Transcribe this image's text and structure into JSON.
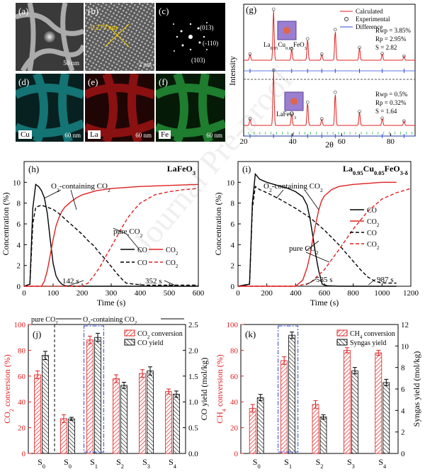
{
  "panels": {
    "a": {
      "label": "(a)",
      "scale": "50 nm"
    },
    "b": {
      "label": "(b)",
      "scale": "2 nm",
      "lattice": "0.279 nm"
    },
    "c": {
      "label": "(c)",
      "spots": [
        "(013)",
        "(-110)",
        "(103)"
      ]
    },
    "d": {
      "label": "(d)",
      "element": "Cu",
      "scale": "60 nm",
      "color": "#1fb7b7"
    },
    "e": {
      "label": "(e)",
      "element": "La",
      "scale": "60 nm",
      "color": "#d11a1a"
    },
    "f": {
      "label": "(f)",
      "element": "Fe",
      "scale": "60 nm",
      "color": "#2fc04a"
    }
  },
  "watermark": "Journal Pre-proof",
  "chart_data": [
    {
      "id": "g",
      "type": "line",
      "label": "(g)",
      "xlabel": "2θ",
      "ylabel": "Intensity",
      "xlim": [
        20,
        90
      ],
      "xticks": [
        20,
        40,
        60,
        80
      ],
      "legend": [
        "Calculated",
        "Experimental",
        "Difference"
      ],
      "subplots": [
        {
          "phase": "La0.95Cu0.05FeO3",
          "stats": [
            "Rwp = 3.85%",
            "Rp = 2.95%",
            "S = 2.82"
          ],
          "peaks": [
            [
              22.6,
              0.12
            ],
            [
              32.2,
              1.0
            ],
            [
              39.6,
              0.22
            ],
            [
              46.1,
              0.42
            ],
            [
              51.9,
              0.12
            ],
            [
              57.4,
              0.6
            ],
            [
              67.3,
              0.25
            ],
            [
              76.6,
              0.13
            ],
            [
              85.5,
              0.08
            ]
          ]
        },
        {
          "phase": "LaFeO3",
          "stats": [
            "Rwp = 0.5%",
            "Rp = 0.32%",
            "S = 1.64"
          ],
          "peaks": [
            [
              22.6,
              0.12
            ],
            [
              32.2,
              1.0
            ],
            [
              39.6,
              0.22
            ],
            [
              46.1,
              0.42
            ],
            [
              51.9,
              0.12
            ],
            [
              57.4,
              0.6
            ],
            [
              67.3,
              0.25
            ],
            [
              76.6,
              0.13
            ],
            [
              85.5,
              0.08
            ]
          ]
        }
      ]
    },
    {
      "id": "h",
      "type": "line",
      "label": "(h)",
      "title": "LaFeO3",
      "xlabel": "Time (s)",
      "ylabel": "Concentration (%)",
      "xlim": [
        0,
        600
      ],
      "ylim": [
        0,
        12
      ],
      "xticks": [
        0,
        100,
        200,
        300,
        400,
        500,
        600
      ],
      "yticks": [
        0,
        2,
        4,
        6,
        8,
        10
      ],
      "legend": [
        "CO",
        "CO2",
        "CO",
        "CO2"
      ],
      "annotations": [
        "O2-containing CO2",
        "pure CO2",
        "142 s",
        "352 s"
      ],
      "series": [
        {
          "gas": "CO",
          "mode": "O2",
          "style": "solid",
          "color": "#000000",
          "x": [
            0,
            20,
            30,
            40,
            50,
            60,
            70,
            80,
            90,
            100,
            110,
            120,
            130,
            142,
            160,
            200,
            300,
            400,
            500,
            600
          ],
          "y": [
            0,
            0.2,
            7.5,
            9.8,
            9.6,
            9.2,
            8.5,
            7.0,
            4.5,
            2.2,
            1.0,
            0.5,
            0.2,
            0.05,
            0,
            0,
            0,
            0,
            0,
            0
          ]
        },
        {
          "gas": "CO2",
          "mode": "O2",
          "style": "solid",
          "color": "#e02020",
          "x": [
            0,
            60,
            70,
            80,
            90,
            100,
            110,
            120,
            130,
            140,
            160,
            180,
            200,
            250,
            300,
            400,
            500,
            600
          ],
          "y": [
            0,
            0,
            0.5,
            1.5,
            3,
            4.5,
            5.8,
            6.6,
            7.2,
            7.6,
            8.1,
            8.5,
            8.8,
            9.2,
            9.4,
            9.6,
            9.7,
            9.8
          ]
        },
        {
          "gas": "CO",
          "mode": "pure",
          "style": "dashed",
          "color": "#000000",
          "x": [
            0,
            20,
            30,
            40,
            60,
            80,
            100,
            120,
            140,
            160,
            180,
            200,
            220,
            240,
            260,
            280,
            300,
            320,
            340,
            352,
            380,
            420,
            600
          ],
          "y": [
            0,
            0.2,
            6.0,
            7.6,
            7.8,
            7.6,
            7.4,
            7.0,
            6.5,
            6.0,
            5.5,
            5.0,
            4.4,
            3.9,
            3.2,
            2.6,
            1.9,
            1.2,
            0.6,
            0.3,
            0.2,
            0.1,
            0.1
          ]
        },
        {
          "gas": "CO2",
          "mode": "pure",
          "style": "dashed",
          "color": "#e02020",
          "x": [
            0,
            200,
            220,
            240,
            260,
            280,
            300,
            320,
            340,
            360,
            380,
            400,
            450,
            500,
            550,
            600
          ],
          "y": [
            0,
            0,
            0.3,
            1.0,
            1.8,
            2.8,
            3.8,
            4.8,
            5.8,
            6.7,
            7.4,
            8.0,
            8.8,
            9.1,
            9.3,
            9.4
          ]
        }
      ]
    },
    {
      "id": "i",
      "type": "line",
      "label": "(i)",
      "title": "La0.95Cu0.05FeO3-δ",
      "xlabel": "Time (s)",
      "ylabel": "Concentration (%)",
      "xlim": [
        0,
        1200
      ],
      "ylim": [
        0,
        12
      ],
      "xticks": [
        0,
        200,
        400,
        600,
        800,
        1000,
        1200
      ],
      "yticks": [
        0,
        2,
        4,
        6,
        8,
        10
      ],
      "legend": [
        "CO",
        "CO2",
        "CO",
        "CO2"
      ],
      "annotations": [
        "O2-containing CO2",
        "pure CO2",
        "585 s",
        "987 s"
      ],
      "series": [
        {
          "gas": "CO",
          "mode": "O2",
          "style": "solid",
          "color": "#000000",
          "x": [
            0,
            80,
            100,
            120,
            150,
            200,
            250,
            300,
            350,
            400,
            450,
            480,
            500,
            520,
            540,
            560,
            585,
            620,
            700,
            800,
            1000,
            1100
          ],
          "y": [
            0,
            0.2,
            8,
            10.8,
            10.3,
            10.0,
            9.8,
            9.6,
            9.4,
            9.1,
            8.6,
            7.8,
            6.5,
            4.8,
            3.0,
            1.5,
            0.2,
            0.05,
            0,
            0,
            0,
            0
          ]
        },
        {
          "gas": "CO2",
          "mode": "O2",
          "style": "solid",
          "color": "#e02020",
          "x": [
            0,
            400,
            450,
            480,
            500,
            520,
            540,
            560,
            580,
            600,
            650,
            700,
            800,
            900,
            1000,
            1100
          ],
          "y": [
            0,
            0,
            0.6,
            1.8,
            3.0,
            4.6,
            6.0,
            7.3,
            8.2,
            8.7,
            9.3,
            9.6,
            9.8,
            9.9,
            10.0,
            10.0
          ]
        },
        {
          "gas": "CO",
          "mode": "pure",
          "style": "dashed",
          "color": "#000000",
          "x": [
            0,
            80,
            100,
            120,
            150,
            200,
            300,
            400,
            500,
            600,
            700,
            800,
            850,
            900,
            950,
            987,
            1050,
            1100
          ],
          "y": [
            0,
            0.2,
            7.5,
            9.6,
            9.3,
            9.0,
            8.3,
            7.5,
            6.6,
            5.4,
            4.0,
            2.4,
            1.6,
            0.9,
            0.5,
            0.35,
            0.3,
            0.3
          ]
        },
        {
          "gas": "CO2",
          "mode": "pure",
          "style": "dashed",
          "color": "#e02020",
          "x": [
            0,
            400,
            500,
            600,
            700,
            800,
            900,
            1000,
            1100,
            1200
          ],
          "y": [
            0,
            0,
            0.3,
            1.6,
            3.5,
            5.5,
            7.2,
            8.4,
            9.0,
            9.4
          ]
        }
      ]
    },
    {
      "id": "j",
      "type": "bar",
      "label": "(j)",
      "categories": [
        "S0",
        "S0",
        "S1",
        "S2",
        "S3",
        "S4"
      ],
      "ylabel": "CO2 conversion (%)",
      "y2label": "CO yield (mol/kg)",
      "ylim": [
        0,
        100
      ],
      "y2lim": [
        0,
        2.5
      ],
      "yticks": [
        0,
        20,
        40,
        60,
        80,
        100
      ],
      "y2ticks": [
        0.0,
        0.5,
        1.0,
        1.5,
        2.0,
        2.5
      ],
      "group_labels": [
        "pure CO2",
        "O2-containing CO2"
      ],
      "legend": [
        "CO2 conversion",
        "CO yield"
      ],
      "series": [
        {
          "name": "CO2 conversion",
          "axis": "left",
          "color": "#e02020",
          "values": [
            61,
            27,
            88,
            58,
            62,
            48
          ],
          "errors": [
            3,
            3,
            3,
            3,
            3,
            2
          ]
        },
        {
          "name": "CO yield",
          "axis": "right",
          "color": "#000000",
          "values": [
            1.9,
            0.67,
            2.25,
            1.32,
            1.6,
            1.15
          ],
          "errors": [
            0.08,
            0.03,
            0.08,
            0.06,
            0.08,
            0.06
          ]
        }
      ],
      "highlight": 2
    },
    {
      "id": "k",
      "type": "bar",
      "label": "(k)",
      "categories": [
        "S0",
        "S1",
        "S2",
        "S3",
        "S4"
      ],
      "ylabel": "CH4 conversion (%)",
      "y2label": "Syngas yield (mol/kg)",
      "ylim": [
        0,
        100
      ],
      "y2lim": [
        0,
        12
      ],
      "yticks": [
        0,
        20,
        40,
        60,
        80,
        100
      ],
      "y2ticks": [
        0,
        2,
        4,
        6,
        8,
        10,
        12
      ],
      "legend": [
        "CH4 conversion",
        "Syngas yield"
      ],
      "series": [
        {
          "name": "CH4 conversion",
          "axis": "left",
          "color": "#e02020",
          "values": [
            35,
            72,
            38,
            80,
            78
          ],
          "errors": [
            3,
            3,
            3,
            2,
            2
          ]
        },
        {
          "name": "Syngas yield",
          "axis": "right",
          "color": "#000000",
          "values": [
            5.2,
            11.0,
            3.4,
            7.7,
            6.6
          ],
          "errors": [
            0.3,
            0.3,
            0.2,
            0.3,
            0.3
          ]
        }
      ],
      "highlight": 1
    }
  ]
}
